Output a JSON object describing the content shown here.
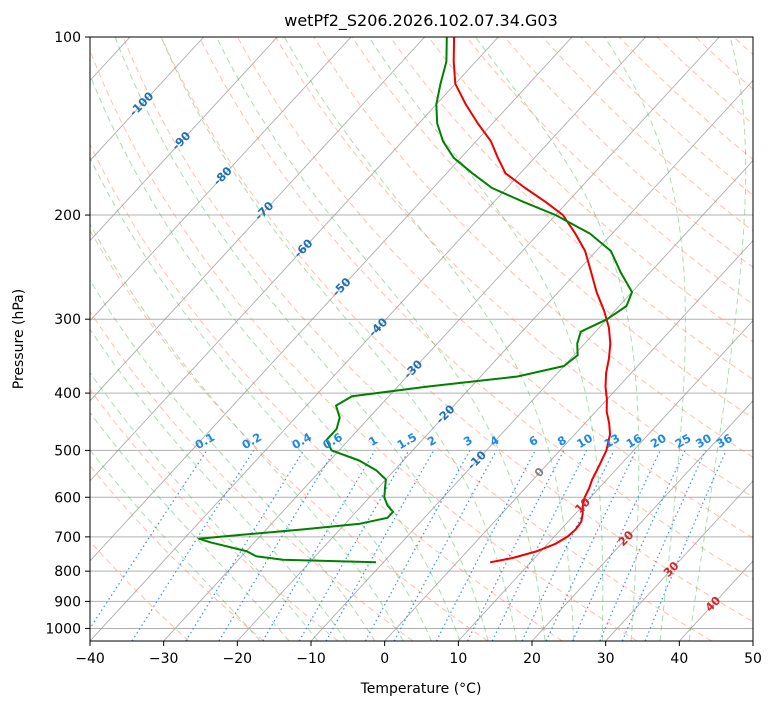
{
  "chart_data": {
    "type": "line",
    "title": "wetPf2_S206.2026.102.07.34.G03",
    "xlabel": "Temperature (°C)",
    "ylabel": "Pressure (hPa)",
    "xlim": [
      -40,
      50
    ],
    "ylim": [
      1050,
      100
    ],
    "y_scale": "log",
    "x_ticks": [
      -40,
      -30,
      -20,
      -10,
      0,
      10,
      20,
      30,
      40,
      50
    ],
    "x_tick_labels": [
      "−40",
      "−30",
      "−20",
      "−10",
      "0",
      "10",
      "20",
      "30",
      "40",
      "50"
    ],
    "y_ticks": [
      100,
      200,
      300,
      400,
      500,
      600,
      700,
      800,
      900,
      1000
    ],
    "y_tick_labels": [
      "100",
      "200",
      "300",
      "400",
      "500",
      "600",
      "700",
      "800",
      "900",
      "1000"
    ],
    "grid": true,
    "series": [
      {
        "role": "temperature",
        "color": "#ee0000",
        "points": [
          [
            773,
            4.5
          ],
          [
            760,
            7
          ],
          [
            740,
            9.5
          ],
          [
            720,
            11
          ],
          [
            700,
            11.8
          ],
          [
            680,
            12
          ],
          [
            660,
            11.8
          ],
          [
            640,
            11
          ],
          [
            620,
            10
          ],
          [
            600,
            9.2
          ],
          [
            580,
            8.7
          ],
          [
            560,
            8
          ],
          [
            530,
            7.2
          ],
          [
            500,
            6.3
          ],
          [
            470,
            4.8
          ],
          [
            450,
            3.3
          ],
          [
            430,
            1.5
          ],
          [
            410,
            0
          ],
          [
            390,
            -1.8
          ],
          [
            370,
            -3.4
          ],
          [
            350,
            -4.8
          ],
          [
            330,
            -6.5
          ],
          [
            310,
            -8.7
          ],
          [
            290,
            -11.5
          ],
          [
            270,
            -14.8
          ],
          [
            250,
            -18
          ],
          [
            230,
            -21.5
          ],
          [
            215,
            -25
          ],
          [
            200,
            -29
          ],
          [
            190,
            -33
          ],
          [
            180,
            -37.5
          ],
          [
            170,
            -42
          ],
          [
            160,
            -45
          ],
          [
            150,
            -48
          ],
          [
            140,
            -52
          ],
          [
            130,
            -56
          ],
          [
            120,
            -60
          ],
          [
            110,
            -63
          ],
          [
            100,
            -66
          ]
        ]
      },
      {
        "role": "dewpoint",
        "color": "#008000",
        "points": [
          [
            773,
            -11
          ],
          [
            765,
            -24
          ],
          [
            755,
            -28
          ],
          [
            740,
            -30
          ],
          [
            715,
            -36
          ],
          [
            705,
            -38
          ],
          [
            695,
            -33
          ],
          [
            680,
            -25
          ],
          [
            665,
            -18
          ],
          [
            650,
            -15
          ],
          [
            635,
            -15
          ],
          [
            620,
            -16.5
          ],
          [
            600,
            -18
          ],
          [
            580,
            -19
          ],
          [
            560,
            -20
          ],
          [
            540,
            -22.5
          ],
          [
            520,
            -26
          ],
          [
            500,
            -31
          ],
          [
            480,
            -33
          ],
          [
            460,
            -33
          ],
          [
            440,
            -34
          ],
          [
            420,
            -36
          ],
          [
            405,
            -35
          ],
          [
            390,
            -26
          ],
          [
            375,
            -15
          ],
          [
            360,
            -10
          ],
          [
            345,
            -9.5
          ],
          [
            330,
            -11
          ],
          [
            315,
            -12
          ],
          [
            300,
            -10
          ],
          [
            285,
            -9
          ],
          [
            270,
            -10
          ],
          [
            250,
            -14
          ],
          [
            230,
            -18
          ],
          [
            215,
            -23
          ],
          [
            200,
            -30
          ],
          [
            190,
            -36
          ],
          [
            180,
            -42
          ],
          [
            170,
            -46.5
          ],
          [
            160,
            -51
          ],
          [
            150,
            -54.5
          ],
          [
            140,
            -57.5
          ],
          [
            130,
            -60
          ],
          [
            120,
            -62
          ],
          [
            110,
            -64
          ],
          [
            100,
            -67
          ]
        ]
      }
    ],
    "isotherm_labels": [
      {
        "value": -100,
        "text": "-100"
      },
      {
        "value": -90,
        "text": "-90"
      },
      {
        "value": -80,
        "text": "-80"
      },
      {
        "value": -70,
        "text": "-70"
      },
      {
        "value": -60,
        "text": "-60"
      },
      {
        "value": -50,
        "text": "-50"
      },
      {
        "value": -40,
        "text": "-40"
      },
      {
        "value": -30,
        "text": "-30"
      },
      {
        "value": -20,
        "text": "-20"
      },
      {
        "value": -10,
        "text": "-10"
      },
      {
        "value": 0,
        "text": "0"
      },
      {
        "value": 10,
        "text": "10"
      },
      {
        "value": 20,
        "text": "20"
      },
      {
        "value": 30,
        "text": "30"
      },
      {
        "value": 40,
        "text": "40"
      }
    ],
    "mixing_ratio_labels": [
      "0.1",
      "0.2",
      "0.4",
      "0.6",
      "1",
      "1.5",
      "2",
      "3",
      "4",
      "6",
      "8",
      "10",
      "13",
      "16",
      "20",
      "25",
      "30",
      "36"
    ],
    "colors": {
      "isotherm": "#999999",
      "dry_adiabat": "#ff8c69",
      "moist_adiabat": "#4caf50",
      "mixing_ratio": "#1e7fd8",
      "isotherm_label_cold": "#1f6fb4",
      "isotherm_label_warm": "#d62728",
      "mixing_ratio_label": "#1e88e5"
    }
  }
}
